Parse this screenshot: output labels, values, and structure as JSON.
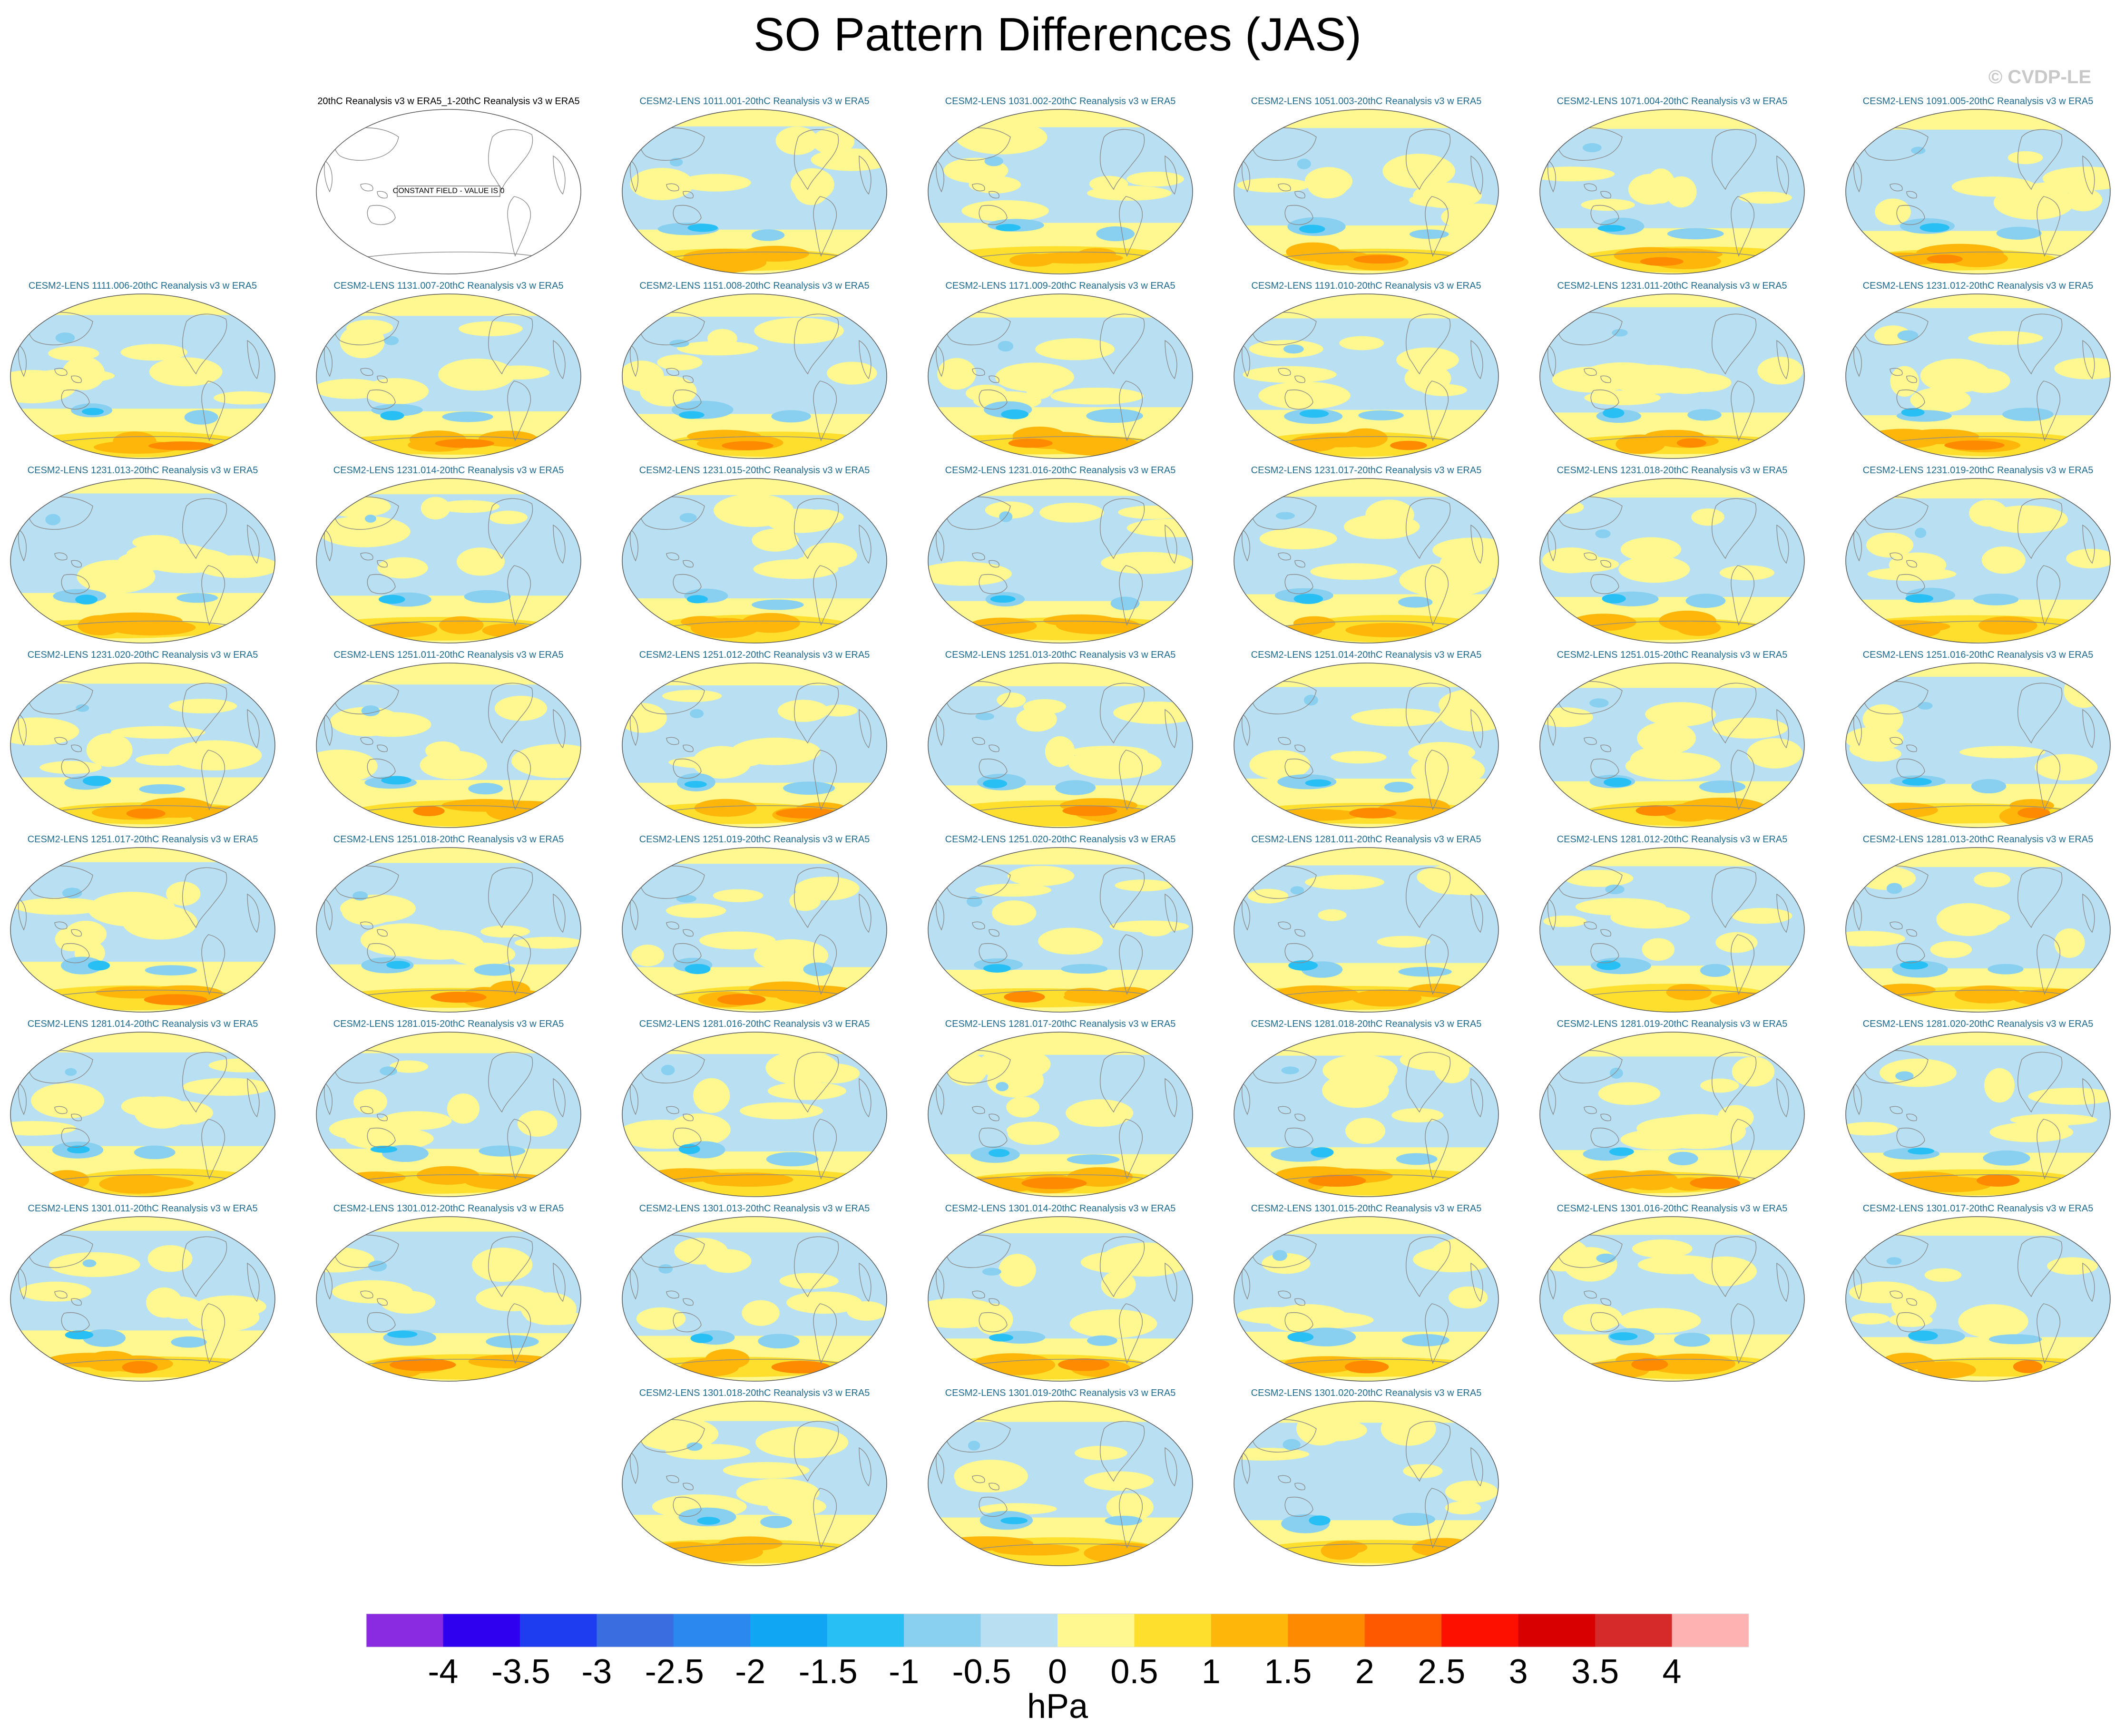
{
  "title": "SO Pattern Differences (JAS)",
  "copyright": "© CVDP-LE",
  "observation_panel": {
    "title": "20thC Reanalysis v3 w ERA5_1-20thC Reanalysis v3 w ERA5",
    "note": "CONSTANT FIELD - VALUE IS 0"
  },
  "panel_suffix": "-20thC Reanalysis v3 w ERA5",
  "members": [
    "CESM2-LENS 1011.001",
    "CESM2-LENS 1031.002",
    "CESM2-LENS 1051.003",
    "CESM2-LENS 1071.004",
    "CESM2-LENS 1091.005",
    "CESM2-LENS 1111.006",
    "CESM2-LENS 1131.007",
    "CESM2-LENS 1151.008",
    "CESM2-LENS 1171.009",
    "CESM2-LENS 1191.010",
    "CESM2-LENS 1231.011",
    "CESM2-LENS 1231.012",
    "CESM2-LENS 1231.013",
    "CESM2-LENS 1231.014",
    "CESM2-LENS 1231.015",
    "CESM2-LENS 1231.016",
    "CESM2-LENS 1231.017",
    "CESM2-LENS 1231.018",
    "CESM2-LENS 1231.019",
    "CESM2-LENS 1231.020",
    "CESM2-LENS 1251.011",
    "CESM2-LENS 1251.012",
    "CESM2-LENS 1251.013",
    "CESM2-LENS 1251.014",
    "CESM2-LENS 1251.015",
    "CESM2-LENS 1251.016",
    "CESM2-LENS 1251.017",
    "CESM2-LENS 1251.018",
    "CESM2-LENS 1251.019",
    "CESM2-LENS 1251.020",
    "CESM2-LENS 1281.011",
    "CESM2-LENS 1281.012",
    "CESM2-LENS 1281.013",
    "CESM2-LENS 1281.014",
    "CESM2-LENS 1281.015",
    "CESM2-LENS 1281.016",
    "CESM2-LENS 1281.017",
    "CESM2-LENS 1281.018",
    "CESM2-LENS 1281.019",
    "CESM2-LENS 1281.020",
    "CESM2-LENS 1301.011",
    "CESM2-LENS 1301.012",
    "CESM2-LENS 1301.013",
    "CESM2-LENS 1301.014",
    "CESM2-LENS 1301.015",
    "CESM2-LENS 1301.016",
    "CESM2-LENS 1301.017",
    "CESM2-LENS 1301.018",
    "CESM2-LENS 1301.019",
    "CESM2-LENS 1301.020"
  ],
  "colorbar": {
    "units": "hPa",
    "tick_labels": [
      "-4",
      "-3.5",
      "-3",
      "-2.5",
      "-2",
      "-1.5",
      "-1",
      "-0.5",
      "0",
      "0.5",
      "1",
      "1.5",
      "2",
      "2.5",
      "3",
      "3.5",
      "4"
    ],
    "colors": [
      "#8a2be2",
      "#2f00f0",
      "#1e3cf0",
      "#3a6ee0",
      "#2a88ee",
      "#10a6f4",
      "#28c0f4",
      "#88cff0",
      "#b8e0f2",
      "#fff890",
      "#fedf2e",
      "#feb60a",
      "#fe8a02",
      "#fe5800",
      "#fe1000",
      "#d80000",
      "#d62a2a",
      "#ffb2b2"
    ]
  },
  "map_palette": {
    "ocean_base": "#b8e0f2",
    "positive_light": "#fff890",
    "positive_mid": "#fedf2e",
    "positive_strong": "#feb60a",
    "positive_stronger": "#fe8a02",
    "negative_mid": "#88cff0",
    "negative_strong": "#28c0f4",
    "coastline": "#8a8a8a"
  }
}
